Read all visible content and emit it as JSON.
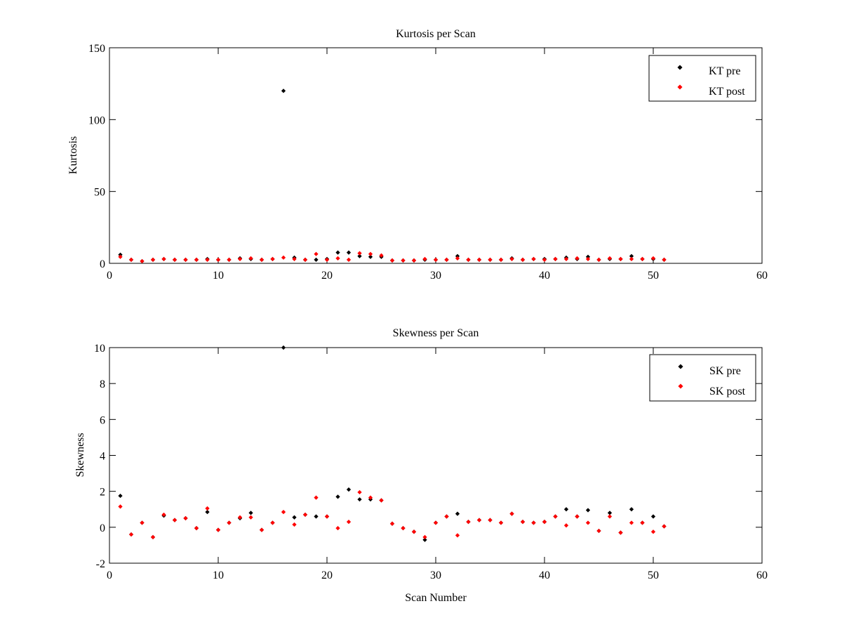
{
  "chart_data": [
    {
      "type": "scatter",
      "title": "Kurtosis per Scan",
      "xlabel": "",
      "ylabel": "Kurtosis",
      "xlim": [
        0,
        60
      ],
      "ylim": [
        0,
        150
      ],
      "xticks": [
        0,
        10,
        20,
        30,
        40,
        50,
        60
      ],
      "yticks": [
        0,
        50,
        100,
        150
      ],
      "grid": false,
      "legend": "top-right",
      "series": [
        {
          "name": "KT pre",
          "color": "#000000",
          "x": [
            1,
            2,
            3,
            4,
            5,
            6,
            7,
            8,
            9,
            10,
            11,
            12,
            13,
            14,
            15,
            16,
            17,
            18,
            19,
            20,
            21,
            22,
            23,
            24,
            25,
            26,
            27,
            28,
            29,
            30,
            31,
            32,
            33,
            34,
            35,
            36,
            37,
            38,
            39,
            40,
            41,
            42,
            43,
            44,
            45,
            46,
            47,
            48,
            49,
            50,
            51
          ],
          "y": [
            6,
            2.5,
            1.5,
            2.5,
            3,
            2.5,
            2.5,
            2.5,
            3,
            2.5,
            2.5,
            3.5,
            3,
            2.5,
            3,
            120,
            4,
            2.5,
            2.5,
            3,
            7.5,
            7.5,
            5,
            4.5,
            4.5,
            2,
            2,
            2,
            2.5,
            2.5,
            2.5,
            5,
            2.5,
            2.5,
            2.5,
            2.5,
            3.5,
            2.5,
            3,
            3,
            3,
            4,
            3,
            4.5,
            2.5,
            3,
            3,
            5,
            3,
            3,
            2.5
          ]
        },
        {
          "name": "KT post",
          "color": "#ff0000",
          "x": [
            1,
            2,
            3,
            4,
            5,
            6,
            7,
            8,
            9,
            10,
            11,
            12,
            13,
            14,
            15,
            16,
            17,
            18,
            19,
            20,
            21,
            22,
            23,
            24,
            25,
            26,
            27,
            28,
            29,
            30,
            31,
            32,
            33,
            34,
            35,
            36,
            37,
            38,
            39,
            40,
            41,
            42,
            43,
            44,
            45,
            46,
            47,
            48,
            49,
            50,
            51
          ],
          "y": [
            4.5,
            2.5,
            1.5,
            2.5,
            3,
            2.5,
            2.5,
            2.5,
            2.5,
            2.5,
            2.5,
            3,
            3.5,
            2.5,
            3,
            4,
            3,
            2.5,
            6.5,
            2.5,
            3.5,
            2.5,
            7,
            6.5,
            5.5,
            2,
            2,
            2,
            3,
            2.5,
            2.5,
            3.5,
            2.5,
            2.5,
            2.5,
            2.5,
            3,
            2.5,
            3,
            2.5,
            3,
            3,
            3.5,
            3,
            2.5,
            3.5,
            3,
            3,
            3,
            3.5,
            2.5
          ]
        }
      ]
    },
    {
      "type": "scatter",
      "title": "Skewness per Scan",
      "xlabel": "Scan Number",
      "ylabel": "Skewness",
      "xlim": [
        0,
        60
      ],
      "ylim": [
        -2,
        10
      ],
      "xticks": [
        0,
        10,
        20,
        30,
        40,
        50,
        60
      ],
      "yticks": [
        -2,
        0,
        2,
        4,
        6,
        8,
        10
      ],
      "grid": false,
      "legend": "top-right",
      "series": [
        {
          "name": "SK pre",
          "color": "#000000",
          "x": [
            1,
            2,
            3,
            4,
            5,
            6,
            7,
            8,
            9,
            10,
            11,
            12,
            13,
            14,
            15,
            16,
            17,
            18,
            19,
            20,
            21,
            22,
            23,
            24,
            25,
            26,
            27,
            28,
            29,
            30,
            31,
            32,
            33,
            34,
            35,
            36,
            37,
            38,
            39,
            40,
            41,
            42,
            43,
            44,
            45,
            46,
            47,
            48,
            49,
            50,
            51
          ],
          "y": [
            1.75,
            -0.4,
            0.25,
            -0.55,
            0.65,
            0.4,
            0.5,
            -0.05,
            0.85,
            -0.15,
            0.25,
            0.5,
            0.8,
            -0.15,
            0.25,
            10,
            0.55,
            0.7,
            0.6,
            0.6,
            1.7,
            2.1,
            1.55,
            1.55,
            1.5,
            0.2,
            -0.05,
            -0.25,
            -0.7,
            0.25,
            0.6,
            0.75,
            0.3,
            0.4,
            0.4,
            0.25,
            0.75,
            0.3,
            0.25,
            0.3,
            0.6,
            1.0,
            0.6,
            0.95,
            -0.2,
            0.8,
            -0.3,
            1.0,
            0.25,
            0.6,
            0.05
          ]
        },
        {
          "name": "SK post",
          "color": "#ff0000",
          "x": [
            1,
            2,
            3,
            4,
            5,
            6,
            7,
            8,
            9,
            10,
            11,
            12,
            13,
            14,
            15,
            16,
            17,
            18,
            19,
            20,
            21,
            22,
            23,
            24,
            25,
            26,
            27,
            28,
            29,
            30,
            31,
            32,
            33,
            34,
            35,
            36,
            37,
            38,
            39,
            40,
            41,
            42,
            43,
            44,
            45,
            46,
            47,
            48,
            49,
            50,
            51
          ],
          "y": [
            1.15,
            -0.4,
            0.25,
            -0.55,
            0.7,
            0.4,
            0.5,
            -0.05,
            1.05,
            -0.15,
            0.25,
            0.55,
            0.55,
            -0.15,
            0.25,
            0.85,
            0.15,
            0.7,
            1.65,
            0.6,
            -0.05,
            0.3,
            1.95,
            1.65,
            1.5,
            0.2,
            -0.05,
            -0.25,
            -0.55,
            0.25,
            0.6,
            -0.45,
            0.3,
            0.4,
            0.4,
            0.25,
            0.75,
            0.3,
            0.25,
            0.3,
            0.6,
            0.1,
            0.6,
            0.25,
            -0.2,
            0.6,
            -0.3,
            0.25,
            0.25,
            -0.25,
            0.05
          ]
        }
      ]
    }
  ]
}
